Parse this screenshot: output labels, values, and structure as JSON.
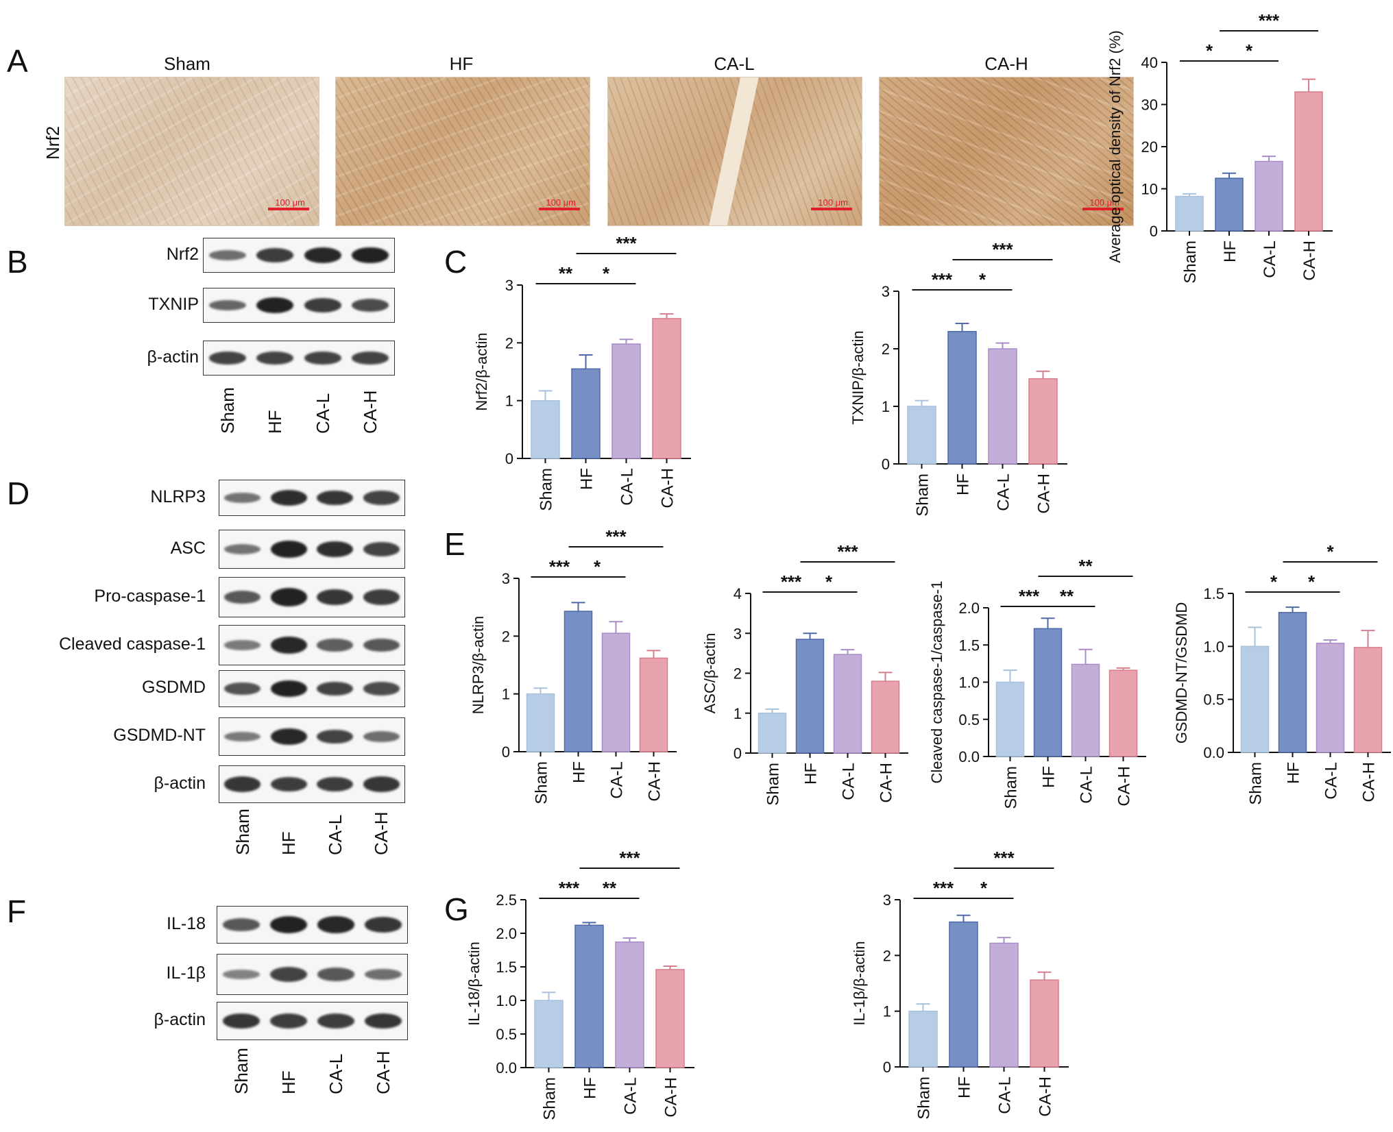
{
  "panels": {
    "A": "A",
    "B": "B",
    "C": "C",
    "D": "D",
    "E": "E",
    "F": "F",
    "G": "G"
  },
  "histology": {
    "row_label": "Nrf2",
    "titles": [
      "Sham",
      "HF",
      "CA-L",
      "CA-H"
    ],
    "scale_text": "100 μm"
  },
  "groups": [
    "Sham",
    "HF",
    "CA-L",
    "CA-H"
  ],
  "colors": {
    "Sham": "#b7cde6",
    "HF": "#7690c6",
    "CA-L": "#c3aed8",
    "CA-H": "#e8a3ae",
    "Sham_edge": "#a9c1dc",
    "HF_edge": "#4e68a8",
    "CA-L_edge": "#a98cc8",
    "CA-H_edge": "#d77e8c"
  },
  "blots": {
    "B": {
      "rows": [
        "Nrf2",
        "TXNIP",
        "β-actin"
      ]
    },
    "D": {
      "rows": [
        "NLRP3",
        "ASC",
        "Pro-caspase-1",
        "Cleaved caspase-1",
        "GSDMD",
        "GSDMD-NT",
        "β-actin"
      ]
    },
    "F": {
      "rows": [
        "IL-18",
        "IL-1β",
        "β-actin"
      ]
    }
  },
  "chart_data": [
    {
      "id": "A",
      "type": "bar",
      "categories": [
        "Sham",
        "HF",
        "CA-L",
        "CA-H"
      ],
      "values": [
        8.2,
        12.5,
        16.5,
        33.0
      ],
      "errors": [
        0.6,
        1.2,
        1.2,
        3.0
      ],
      "ylabel": "Average optical density of Nrf2 (%)",
      "ylim": [
        0,
        40
      ],
      "yticks": [
        0,
        10,
        20,
        30,
        40
      ],
      "sig": [
        {
          "from": 0,
          "to": 1,
          "label": "*",
          "level": 0
        },
        {
          "from": 1,
          "to": 2,
          "label": "*",
          "level": 0
        },
        {
          "from": 1,
          "to": 3,
          "label": "***",
          "level": 1
        }
      ]
    },
    {
      "id": "C1",
      "type": "bar",
      "categories": [
        "Sham",
        "HF",
        "CA-L",
        "CA-H"
      ],
      "values": [
        1.0,
        1.55,
        1.98,
        2.42
      ],
      "errors": [
        0.17,
        0.24,
        0.08,
        0.08
      ],
      "ylabel": "Nrf2/β-actin",
      "ylim": [
        0,
        3
      ],
      "yticks": [
        0,
        1,
        2,
        3
      ],
      "sig": [
        {
          "from": 0,
          "to": 1,
          "label": "**",
          "level": 0
        },
        {
          "from": 1,
          "to": 2,
          "label": "*",
          "level": 0
        },
        {
          "from": 1,
          "to": 3,
          "label": "***",
          "level": 1
        }
      ]
    },
    {
      "id": "C2",
      "type": "bar",
      "categories": [
        "Sham",
        "HF",
        "CA-L",
        "CA-H"
      ],
      "values": [
        1.0,
        2.3,
        2.0,
        1.48
      ],
      "errors": [
        0.1,
        0.14,
        0.1,
        0.13
      ],
      "ylabel": "TXNIP/β-actin",
      "ylim": [
        0,
        3
      ],
      "yticks": [
        0,
        1,
        2,
        3
      ],
      "sig": [
        {
          "from": 0,
          "to": 1,
          "label": "***",
          "level": 0
        },
        {
          "from": 1,
          "to": 2,
          "label": "*",
          "level": 0
        },
        {
          "from": 1,
          "to": 3,
          "label": "***",
          "level": 1
        }
      ]
    },
    {
      "id": "E1",
      "type": "bar",
      "categories": [
        "Sham",
        "HF",
        "CA-L",
        "CA-H"
      ],
      "values": [
        1.0,
        2.43,
        2.05,
        1.62
      ],
      "errors": [
        0.1,
        0.15,
        0.2,
        0.13
      ],
      "ylabel": "NLRP3/β-actin",
      "ylim": [
        0,
        3
      ],
      "yticks": [
        0,
        1,
        2,
        3
      ],
      "sig": [
        {
          "from": 0,
          "to": 1,
          "label": "***",
          "level": 0
        },
        {
          "from": 1,
          "to": 2,
          "label": "*",
          "level": 0
        },
        {
          "from": 1,
          "to": 3,
          "label": "***",
          "level": 1
        }
      ]
    },
    {
      "id": "E2",
      "type": "bar",
      "categories": [
        "Sham",
        "HF",
        "CA-L",
        "CA-H"
      ],
      "values": [
        1.0,
        2.85,
        2.47,
        1.8
      ],
      "errors": [
        0.1,
        0.15,
        0.12,
        0.22
      ],
      "ylabel": "ASC/β-actin",
      "ylim": [
        0,
        4
      ],
      "yticks": [
        0,
        1,
        2,
        3,
        4
      ],
      "sig": [
        {
          "from": 0,
          "to": 1,
          "label": "***",
          "level": 0
        },
        {
          "from": 1,
          "to": 2,
          "label": "*",
          "level": 0
        },
        {
          "from": 1,
          "to": 3,
          "label": "***",
          "level": 1
        }
      ]
    },
    {
      "id": "E3",
      "type": "bar",
      "categories": [
        "Sham",
        "HF",
        "CA-L",
        "CA-H"
      ],
      "values": [
        1.0,
        1.72,
        1.24,
        1.16
      ],
      "errors": [
        0.16,
        0.14,
        0.2,
        0.03
      ],
      "ylabel": "Cleaved caspase-1/caspase-1",
      "ylim": [
        0,
        2.0
      ],
      "yticks": [
        "0.0",
        "0.5",
        "1.0",
        "1.5",
        "2.0"
      ],
      "sig": [
        {
          "from": 0,
          "to": 1,
          "label": "***",
          "level": 0
        },
        {
          "from": 1,
          "to": 2,
          "label": "**",
          "level": 0
        },
        {
          "from": 1,
          "to": 3,
          "label": "**",
          "level": 1
        }
      ]
    },
    {
      "id": "E4",
      "type": "bar",
      "categories": [
        "Sham",
        "HF",
        "CA-L",
        "CA-H"
      ],
      "values": [
        1.0,
        1.32,
        1.03,
        0.99
      ],
      "errors": [
        0.18,
        0.05,
        0.03,
        0.16
      ],
      "ylabel": "GSDMD-NT/GSDMD",
      "ylim": [
        0,
        1.5
      ],
      "yticks": [
        "0.0",
        "0.5",
        "1.0",
        "1.5"
      ],
      "sig": [
        {
          "from": 0,
          "to": 1,
          "label": "*",
          "level": 0
        },
        {
          "from": 1,
          "to": 2,
          "label": "*",
          "level": 0
        },
        {
          "from": 1,
          "to": 3,
          "label": "*",
          "level": 1
        }
      ]
    },
    {
      "id": "G1",
      "type": "bar",
      "categories": [
        "Sham",
        "HF",
        "CA-L",
        "CA-H"
      ],
      "values": [
        1.0,
        2.12,
        1.87,
        1.46
      ],
      "errors": [
        0.12,
        0.04,
        0.06,
        0.05
      ],
      "ylabel": "IL-18/β-actin",
      "ylim": [
        0,
        2.5
      ],
      "yticks": [
        "0.0",
        "0.5",
        "1.0",
        "1.5",
        "2.0",
        "2.5"
      ],
      "sig": [
        {
          "from": 0,
          "to": 1,
          "label": "***",
          "level": 0
        },
        {
          "from": 1,
          "to": 2,
          "label": "**",
          "level": 0
        },
        {
          "from": 1,
          "to": 3,
          "label": "***",
          "level": 1
        }
      ]
    },
    {
      "id": "G2",
      "type": "bar",
      "categories": [
        "Sham",
        "HF",
        "CA-L",
        "CA-H"
      ],
      "values": [
        1.0,
        2.6,
        2.22,
        1.56
      ],
      "errors": [
        0.13,
        0.12,
        0.1,
        0.14
      ],
      "ylabel": "IL-1β/β-actin",
      "ylim": [
        0,
        3
      ],
      "yticks": [
        0,
        1,
        2,
        3
      ],
      "sig": [
        {
          "from": 0,
          "to": 1,
          "label": "***",
          "level": 0
        },
        {
          "from": 1,
          "to": 2,
          "label": "*",
          "level": 0
        },
        {
          "from": 1,
          "to": 3,
          "label": "***",
          "level": 1
        }
      ]
    }
  ]
}
